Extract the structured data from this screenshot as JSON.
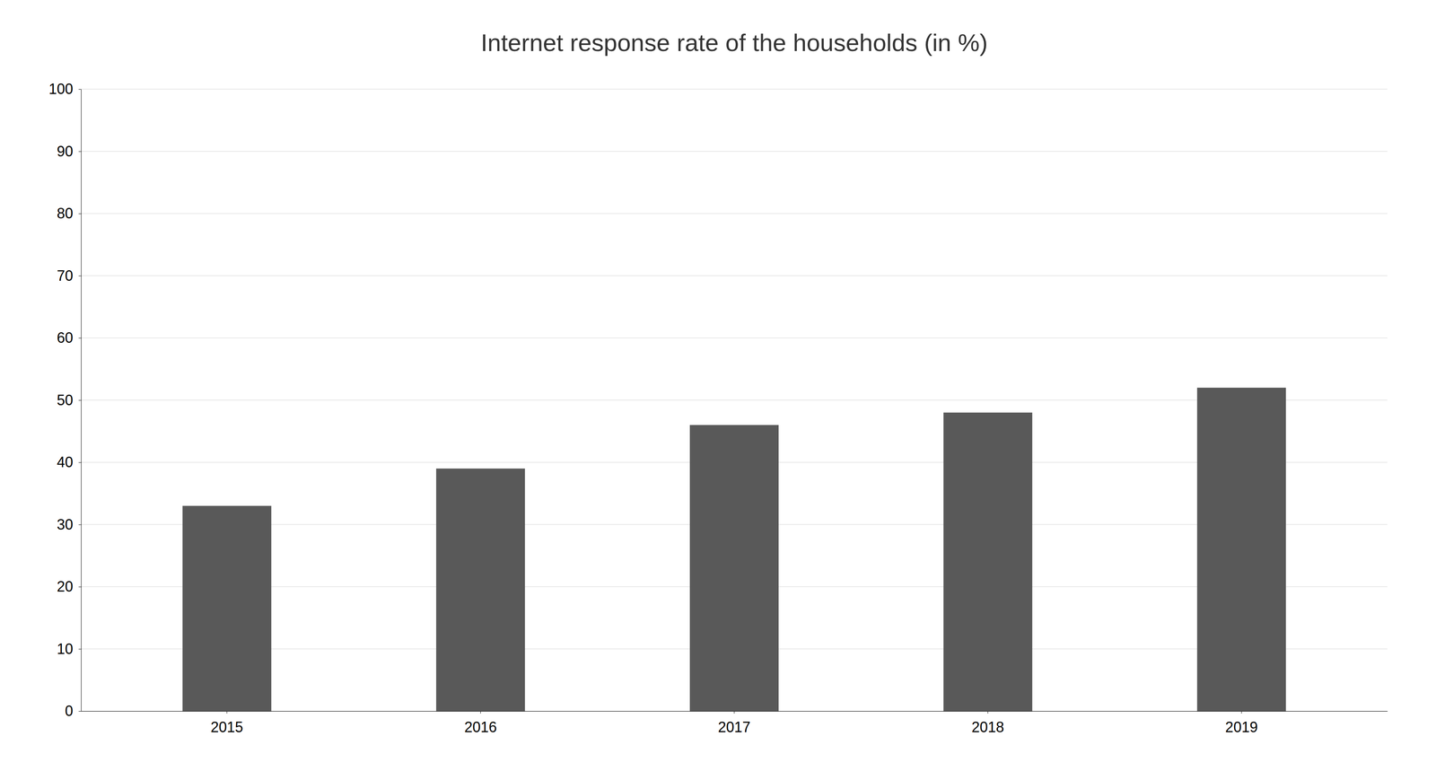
{
  "chart_data": {
    "type": "bar",
    "title": "Internet response rate of the households (in %)",
    "categories": [
      "2015",
      "2016",
      "2017",
      "2018",
      "2019"
    ],
    "values": [
      33,
      39,
      46,
      48,
      52
    ],
    "color": "#595959",
    "ylim": [
      0,
      100
    ],
    "yticks": [
      0,
      10,
      20,
      30,
      40,
      50,
      60,
      70,
      80,
      90,
      100
    ],
    "grid": true
  }
}
